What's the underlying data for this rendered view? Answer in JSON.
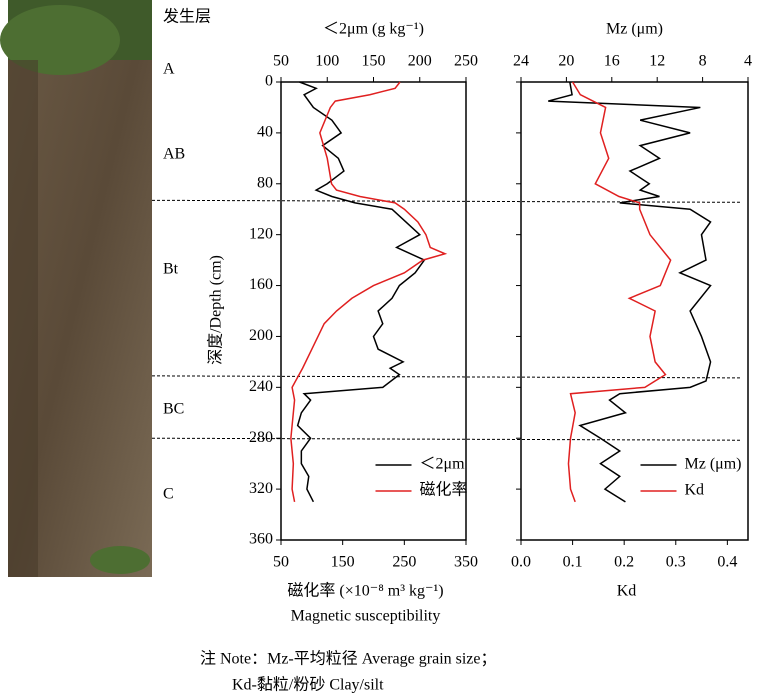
{
  "horizon_header": "发生层",
  "horizons": [
    "A",
    "AB",
    "Bt",
    "BC",
    "C"
  ],
  "horizon_boundaries": [
    93,
    231,
    280
  ],
  "chart_data": [
    {
      "type": "line",
      "ylabel": "深度/Depth (cm)",
      "ylim": [
        0,
        360
      ],
      "yticks": [
        0,
        40,
        80,
        120,
        160,
        200,
        240,
        280,
        320,
        360
      ],
      "y_reversed": true,
      "legend": "lower right",
      "x_top": {
        "label": "＜2μm (g kg⁻¹)",
        "xlim": [
          50,
          250
        ],
        "xticks": [
          50,
          100,
          150,
          200,
          250
        ]
      },
      "x_bottom": {
        "label": "磁化率 (×10⁻⁸ m³ kg⁻¹)",
        "label2": "Magnetic  susceptibility",
        "xlim": [
          50,
          350
        ],
        "xticks": [
          50,
          150,
          250,
          350
        ]
      },
      "series": [
        {
          "name": "＜2μm",
          "color": "#000000",
          "axis": "top",
          "depth": [
            0,
            5,
            10,
            20,
            30,
            40,
            50,
            60,
            70,
            80,
            85,
            90,
            95,
            100,
            110,
            120,
            130,
            140,
            150,
            160,
            170,
            180,
            190,
            200,
            210,
            220,
            225,
            230,
            240,
            245,
            250,
            260,
            270,
            280,
            290,
            300,
            310,
            320,
            330
          ],
          "values": [
            70,
            88,
            75,
            85,
            105,
            115,
            95,
            112,
            118,
            100,
            88,
            105,
            130,
            170,
            185,
            200,
            175,
            205,
            195,
            178,
            170,
            155,
            160,
            150,
            155,
            182,
            168,
            178,
            160,
            75,
            82,
            72,
            68,
            82,
            72,
            72,
            80,
            78,
            85
          ]
        },
        {
          "name": "磁化率",
          "color": "#e02020",
          "axis": "bottom",
          "depth": [
            0,
            5,
            10,
            15,
            20,
            40,
            60,
            80,
            85,
            90,
            95,
            100,
            110,
            120,
            130,
            135,
            140,
            150,
            160,
            170,
            180,
            190,
            200,
            210,
            225,
            240,
            250,
            260,
            280,
            300,
            320,
            330
          ],
          "values": [
            243,
            235,
            194,
            138,
            130,
            113,
            125,
            132,
            140,
            178,
            235,
            250,
            272,
            285,
            292,
            316,
            280,
            250,
            200,
            165,
            140,
            120,
            110,
            100,
            85,
            68,
            72,
            70,
            66,
            70,
            68,
            72
          ]
        }
      ]
    },
    {
      "type": "line",
      "ylim": [
        0,
        360
      ],
      "y_reversed": true,
      "legend": "lower right",
      "x_top": {
        "label": "Mz (μm)",
        "xlim": [
          24,
          4
        ],
        "xticks": [
          24,
          20,
          16,
          12,
          8,
          4
        ]
      },
      "x_bottom": {
        "label": "Kd",
        "xlim": [
          0,
          0.44
        ],
        "xticks": [
          {
            "value": 0,
            "label": "0.0"
          },
          0.1,
          0.2,
          0.3,
          0.4
        ]
      },
      "series": [
        {
          "name": "Mz (μm)",
          "color": "#000000",
          "axis": "top",
          "depth": [
            0,
            10,
            15,
            20,
            30,
            40,
            50,
            60,
            70,
            80,
            85,
            90,
            95,
            100,
            110,
            120,
            140,
            150,
            160,
            180,
            200,
            220,
            235,
            240,
            245,
            250,
            260,
            270,
            280,
            290,
            300,
            310,
            320,
            330
          ],
          "values": [
            19.7,
            19.5,
            21.6,
            8.2,
            13.5,
            9.1,
            13.5,
            11.8,
            14.4,
            12.7,
            13.5,
            11.8,
            15.3,
            9.1,
            7.3,
            8.1,
            7.7,
            10,
            7.3,
            9.1,
            8.1,
            7.3,
            7.7,
            9.1,
            15.3,
            16.2,
            14.8,
            18.8,
            17,
            15.3,
            17,
            15.3,
            16.6,
            14.8
          ]
        },
        {
          "name": "Kd",
          "color": "#e02020",
          "axis": "bottom",
          "depth": [
            0,
            10,
            20,
            40,
            60,
            80,
            90,
            95,
            100,
            120,
            140,
            160,
            170,
            180,
            200,
            220,
            230,
            240,
            245,
            260,
            280,
            300,
            320,
            330
          ],
          "values": [
            0.1,
            0.115,
            0.164,
            0.154,
            0.17,
            0.144,
            0.19,
            0.23,
            0.23,
            0.25,
            0.29,
            0.27,
            0.21,
            0.26,
            0.25,
            0.26,
            0.28,
            0.24,
            0.096,
            0.105,
            0.096,
            0.092,
            0.096,
            0.105
          ]
        }
      ]
    }
  ],
  "note": [
    "注 Note：Mz-平均粒径 Average grain size；",
    "Kd-黏粒/粉砂 Clay/silt"
  ]
}
